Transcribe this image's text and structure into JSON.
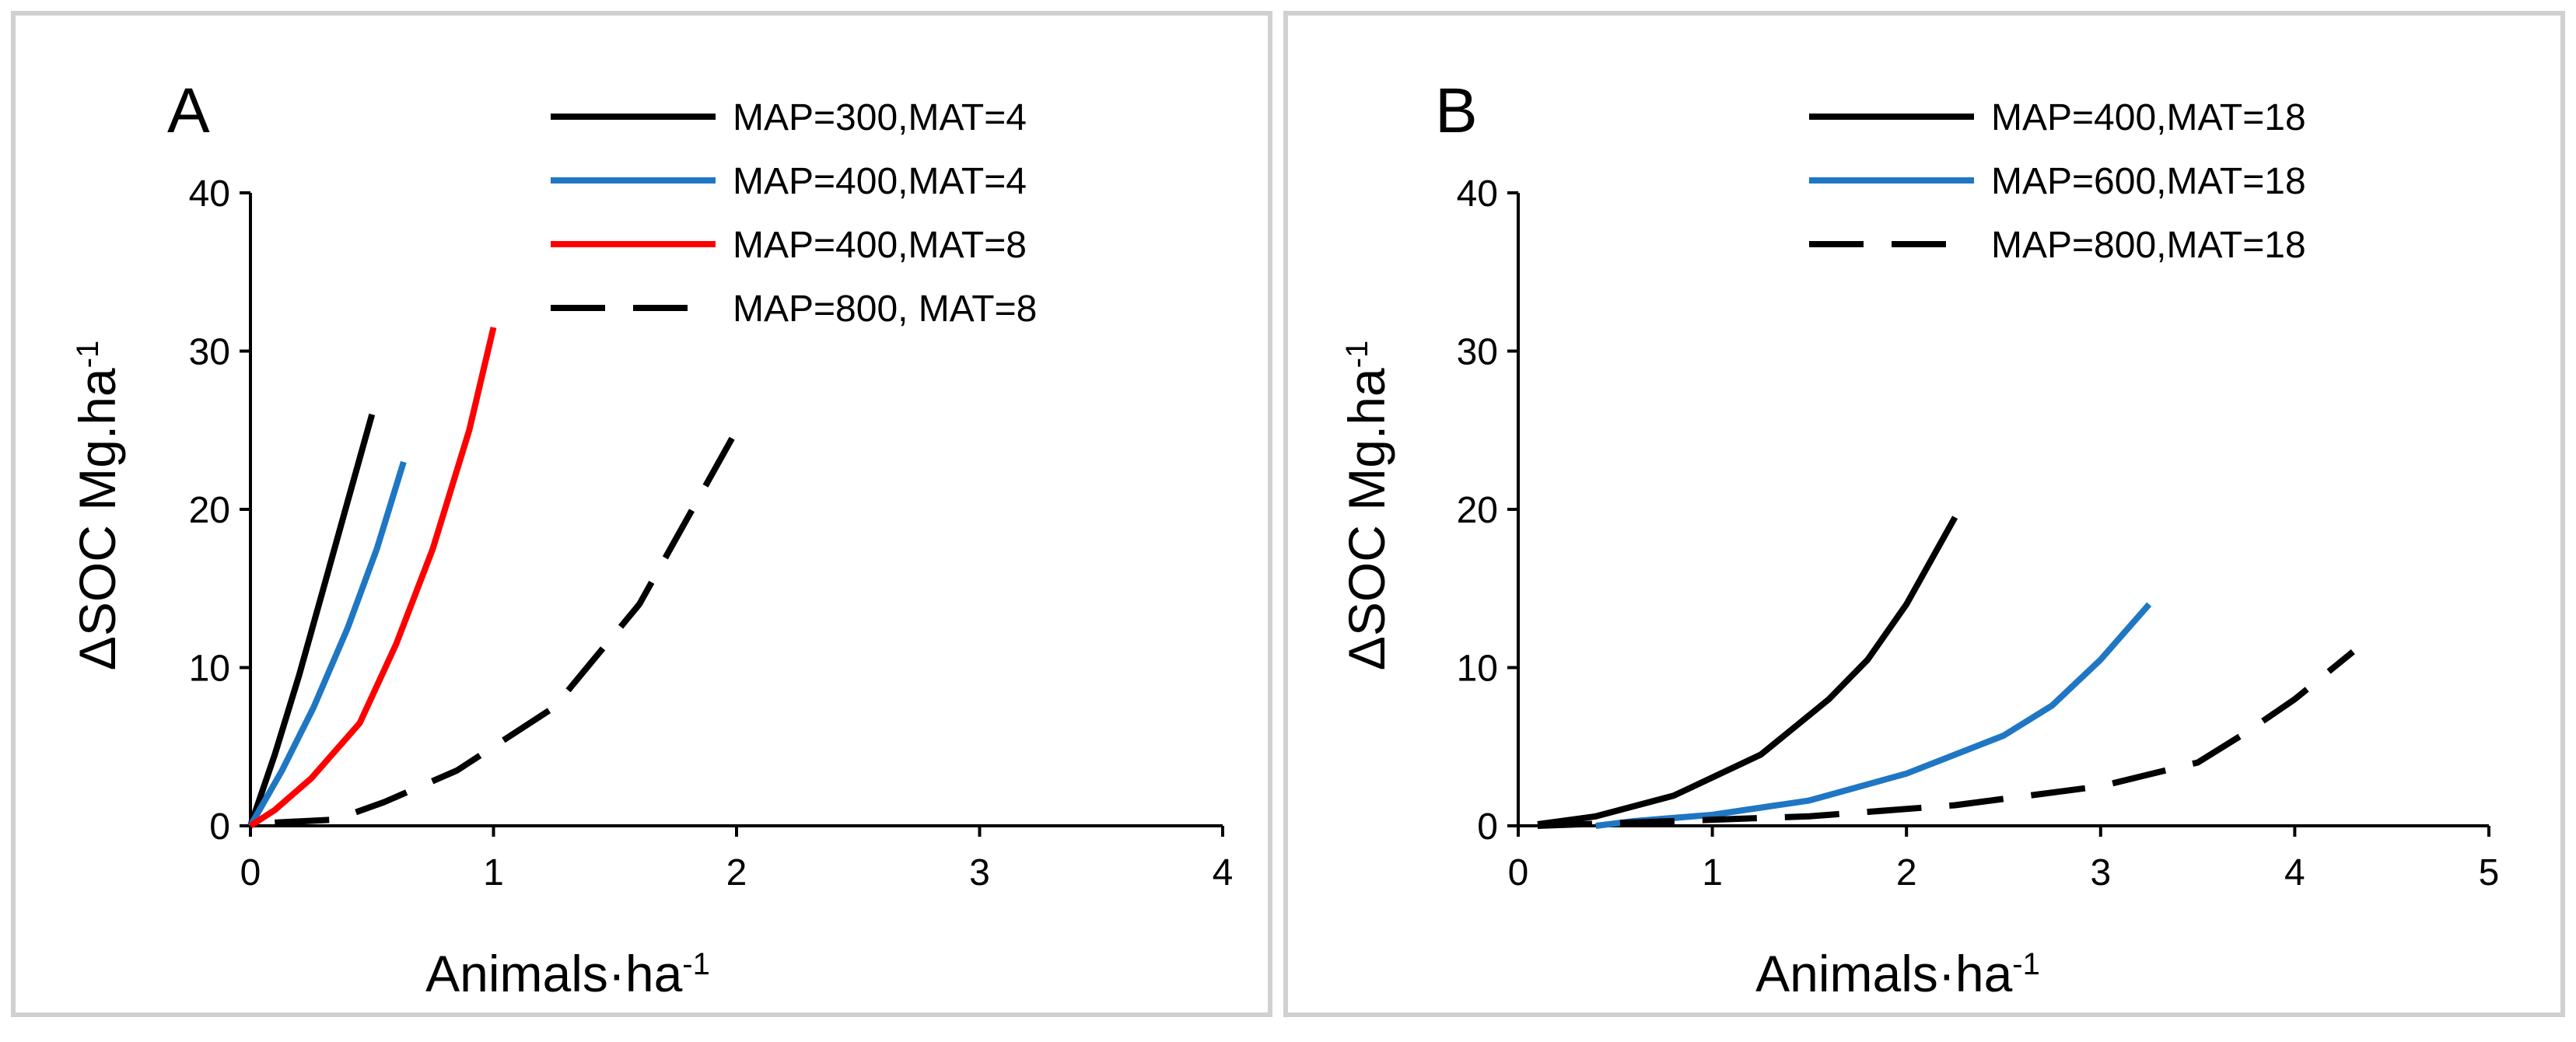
{
  "chart_data": [
    {
      "type": "line",
      "panel_label": "A",
      "xlabel": "Animals·ha",
      "xlabel_sup": "-1",
      "ylabel": "ΔSOC Mg.ha",
      "ylabel_sup": "-1",
      "xlim": [
        0,
        4
      ],
      "ylim": [
        0,
        40
      ],
      "xticks": [
        0,
        1,
        2,
        3,
        4
      ],
      "yticks": [
        0,
        10,
        20,
        30,
        40
      ],
      "grid": false,
      "legend_position": "top-right",
      "series": [
        {
          "name": "MAP=300,MAT=4",
          "color": "#000000",
          "dash": "solid",
          "x": [
            0,
            0.1,
            0.2,
            0.3,
            0.4,
            0.5
          ],
          "y": [
            0,
            4.5,
            9.5,
            15,
            20.5,
            26
          ]
        },
        {
          "name": "MAP=400,MAT=4",
          "color": "#1f77c4",
          "dash": "solid",
          "x": [
            0,
            0.13,
            0.26,
            0.4,
            0.52,
            0.63
          ],
          "y": [
            0,
            3.5,
            7.5,
            12.5,
            17.5,
            23
          ]
        },
        {
          "name": "MAP=400,MAT=8",
          "color": "#ff0000",
          "dash": "solid",
          "x": [
            0,
            0.1,
            0.25,
            0.45,
            0.6,
            0.75,
            0.9,
            1.0
          ],
          "y": [
            0,
            1,
            3,
            6.5,
            11.5,
            17.5,
            25,
            31.5
          ]
        },
        {
          "name": "MAP=800, MAT=8",
          "color": "#000000",
          "dash": "dashed",
          "x": [
            0.1,
            0.35,
            0.55,
            0.85,
            1.25,
            1.6,
            2.0
          ],
          "y": [
            0.2,
            0.4,
            1.5,
            3.5,
            7.5,
            14,
            25
          ]
        }
      ]
    },
    {
      "type": "line",
      "panel_label": "B",
      "xlabel": "Animals·ha",
      "xlabel_sup": "-1",
      "ylabel": "ΔSOC Mg.ha",
      "ylabel_sup": "-1",
      "xlim": [
        0,
        5
      ],
      "ylim": [
        0,
        40
      ],
      "xticks": [
        0,
        1,
        2,
        3,
        4,
        5
      ],
      "yticks": [
        0,
        10,
        20,
        30,
        40
      ],
      "grid": false,
      "legend_position": "top-right",
      "series": [
        {
          "name": "MAP=400,MAT=18",
          "color": "#000000",
          "dash": "solid",
          "x": [
            0.1,
            0.4,
            0.8,
            1.25,
            1.6,
            1.8,
            2.0,
            2.25
          ],
          "y": [
            0.1,
            0.6,
            1.9,
            4.5,
            8,
            10.5,
            14,
            19.5
          ]
        },
        {
          "name": "MAP=600,MAT=18",
          "color": "#1f77c4",
          "dash": "solid",
          "x": [
            0.4,
            0.6,
            1.0,
            1.5,
            2.0,
            2.5,
            2.75,
            3.0,
            3.25
          ],
          "y": [
            0,
            0.3,
            0.7,
            1.6,
            3.3,
            5.7,
            7.6,
            10.5,
            14
          ]
        },
        {
          "name": "MAP=800,MAT=18",
          "color": "#000000",
          "dash": "dashed",
          "x": [
            0.1,
            0.8,
            1.5,
            2.25,
            3.0,
            3.5,
            3.75,
            4.0,
            4.3
          ],
          "y": [
            0,
            0.3,
            0.6,
            1.3,
            2.5,
            4,
            5.9,
            8,
            11
          ]
        }
      ]
    }
  ]
}
